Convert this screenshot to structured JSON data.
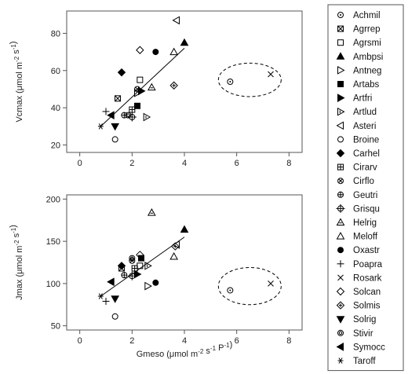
{
  "chart_data": [
    {
      "type": "scatter",
      "ylabel": "Vcmax (μmol m⁻² s⁻¹)",
      "xlabel": "",
      "xlim": [
        -0.5,
        8.5
      ],
      "ylim": [
        16,
        92
      ],
      "xticks": [
        0,
        2,
        4,
        6,
        8
      ],
      "yticks": [
        20,
        40,
        60,
        80
      ],
      "fit_line": {
        "x": [
          0.8,
          4.0
        ],
        "y": [
          30,
          72
        ]
      },
      "outlier_ellipse": {
        "center": [
          6.5,
          55
        ],
        "rx": 1.2,
        "ry": 9
      },
      "points": [
        {
          "species": "Achmil",
          "x": 5.75,
          "y": 54
        },
        {
          "species": "Agrrep",
          "x": 1.45,
          "y": 45
        },
        {
          "species": "Agrsmi",
          "x": 2.3,
          "y": 55
        },
        {
          "species": "Ambpsi",
          "x": 4.0,
          "y": 75
        },
        {
          "species": "Antneg",
          "x": 2.2,
          "y": 48
        },
        {
          "species": "Artabs",
          "x": 2.2,
          "y": 41
        },
        {
          "species": "Artfri",
          "x": 2.35,
          "y": 49
        },
        {
          "species": "Artlud",
          "x": 2.55,
          "y": 35
        },
        {
          "species": "Asteri",
          "x": 3.7,
          "y": 87
        },
        {
          "species": "Broine",
          "x": 1.35,
          "y": 23
        },
        {
          "species": "Carhel",
          "x": 1.6,
          "y": 59
        },
        {
          "species": "Cirarv",
          "x": 2.0,
          "y": 39
        },
        {
          "species": "Cirflo",
          "x": 2.2,
          "y": 50
        },
        {
          "species": "Geutri",
          "x": 1.7,
          "y": 36
        },
        {
          "species": "Grisqu",
          "x": 2.0,
          "y": 35
        },
        {
          "species": "Helrig",
          "x": 2.75,
          "y": 51
        },
        {
          "species": "Meloff",
          "x": 3.6,
          "y": 70
        },
        {
          "species": "Oxastr",
          "x": 2.9,
          "y": 70
        },
        {
          "species": "Poapra",
          "x": 1.0,
          "y": 38
        },
        {
          "species": "Rosark",
          "x": 7.3,
          "y": 58
        },
        {
          "species": "Solcan",
          "x": 2.3,
          "y": 71
        },
        {
          "species": "Solmis",
          "x": 3.6,
          "y": 52
        },
        {
          "species": "Solrig",
          "x": 1.35,
          "y": 30
        },
        {
          "species": "Stivir",
          "x": 1.85,
          "y": 36
        },
        {
          "species": "Symocc",
          "x": 1.2,
          "y": 36
        },
        {
          "species": "Taroff",
          "x": 0.8,
          "y": 30
        }
      ]
    },
    {
      "type": "scatter",
      "ylabel": "Jmax (μmol m⁻² s⁻¹)",
      "xlabel": "Gmeso (μmol m⁻² s⁻¹ P⁻¹)",
      "xlim": [
        -0.5,
        8.5
      ],
      "ylim": [
        45,
        205
      ],
      "xticks": [
        0,
        2,
        4,
        6,
        8
      ],
      "yticks": [
        50,
        100,
        150,
        200
      ],
      "fit_line": {
        "x": [
          0.8,
          4.0
        ],
        "y": [
          85,
          155
        ]
      },
      "outlier_ellipse": {
        "center": [
          6.5,
          97
        ],
        "rx": 1.2,
        "ry": 22
      },
      "points": [
        {
          "species": "Achmil",
          "x": 5.75,
          "y": 92
        },
        {
          "species": "Agrrep",
          "x": 1.6,
          "y": 118
        },
        {
          "species": "Agrsmi",
          "x": 2.3,
          "y": 121
        },
        {
          "species": "Ambpsi",
          "x": 4.0,
          "y": 164
        },
        {
          "species": "Antneg",
          "x": 2.6,
          "y": 97
        },
        {
          "species": "Artabs",
          "x": 2.35,
          "y": 130
        },
        {
          "species": "Artfri",
          "x": 2.2,
          "y": 111
        },
        {
          "species": "Artlud",
          "x": 2.6,
          "y": 121
        },
        {
          "species": "Asteri",
          "x": 3.7,
          "y": 146
        },
        {
          "species": "Broine",
          "x": 1.35,
          "y": 61
        },
        {
          "species": "Carhel",
          "x": 1.6,
          "y": 121
        },
        {
          "species": "Cirarv",
          "x": 2.1,
          "y": 118
        },
        {
          "species": "Cirflo",
          "x": 2.0,
          "y": 127
        },
        {
          "species": "Geutri",
          "x": 1.7,
          "y": 110
        },
        {
          "species": "Grisqu",
          "x": 2.0,
          "y": 109
        },
        {
          "species": "Helrig",
          "x": 2.75,
          "y": 184
        },
        {
          "species": "Meloff",
          "x": 3.6,
          "y": 132
        },
        {
          "species": "Oxastr",
          "x": 2.9,
          "y": 101
        },
        {
          "species": "Poapra",
          "x": 1.0,
          "y": 79
        },
        {
          "species": "Rosark",
          "x": 7.3,
          "y": 100
        },
        {
          "species": "Solcan",
          "x": 2.3,
          "y": 134
        },
        {
          "species": "Solmis",
          "x": 3.65,
          "y": 144
        },
        {
          "species": "Solrig",
          "x": 1.35,
          "y": 82
        },
        {
          "species": "Stivir",
          "x": 2.0,
          "y": 130
        },
        {
          "species": "Symocc",
          "x": 1.2,
          "y": 102
        },
        {
          "species": "Taroff",
          "x": 0.8,
          "y": 85
        }
      ]
    }
  ],
  "legend": {
    "entries": [
      {
        "name": "Achmil",
        "marker": "circle-dot"
      },
      {
        "name": "Agrrep",
        "marker": "square-x"
      },
      {
        "name": "Agrsmi",
        "marker": "square-open"
      },
      {
        "name": "Ambpsi",
        "marker": "triangle-up-filled"
      },
      {
        "name": "Antneg",
        "marker": "triangle-right-open"
      },
      {
        "name": "Artabs",
        "marker": "square-filled"
      },
      {
        "name": "Artfri",
        "marker": "triangle-right-filled"
      },
      {
        "name": "Artlud",
        "marker": "triangle-right-bar"
      },
      {
        "name": "Asteri",
        "marker": "triangle-left-open"
      },
      {
        "name": "Broine",
        "marker": "circle-open"
      },
      {
        "name": "Carhel",
        "marker": "diamond-filled"
      },
      {
        "name": "Cirarv",
        "marker": "square-plus"
      },
      {
        "name": "Cirflo",
        "marker": "circle-x"
      },
      {
        "name": "Geutri",
        "marker": "circle-plus"
      },
      {
        "name": "Grisqu",
        "marker": "circle-cross"
      },
      {
        "name": "Helrig",
        "marker": "triangle-up-bar"
      },
      {
        "name": "Meloff",
        "marker": "triangle-up-open"
      },
      {
        "name": "Oxastr",
        "marker": "circle-filled"
      },
      {
        "name": "Poapra",
        "marker": "plus"
      },
      {
        "name": "Rosark",
        "marker": "x"
      },
      {
        "name": "Solcan",
        "marker": "diamond-open"
      },
      {
        "name": "Solmis",
        "marker": "diamond-plus"
      },
      {
        "name": "Solrig",
        "marker": "triangle-down-filled"
      },
      {
        "name": "Stivir",
        "marker": "circle-double"
      },
      {
        "name": "Symocc",
        "marker": "triangle-left-filled"
      },
      {
        "name": "Taroff",
        "marker": "asterisk"
      }
    ]
  },
  "colors": {
    "ink": "#000000",
    "grid": "#555555",
    "background": "#ffffff"
  }
}
